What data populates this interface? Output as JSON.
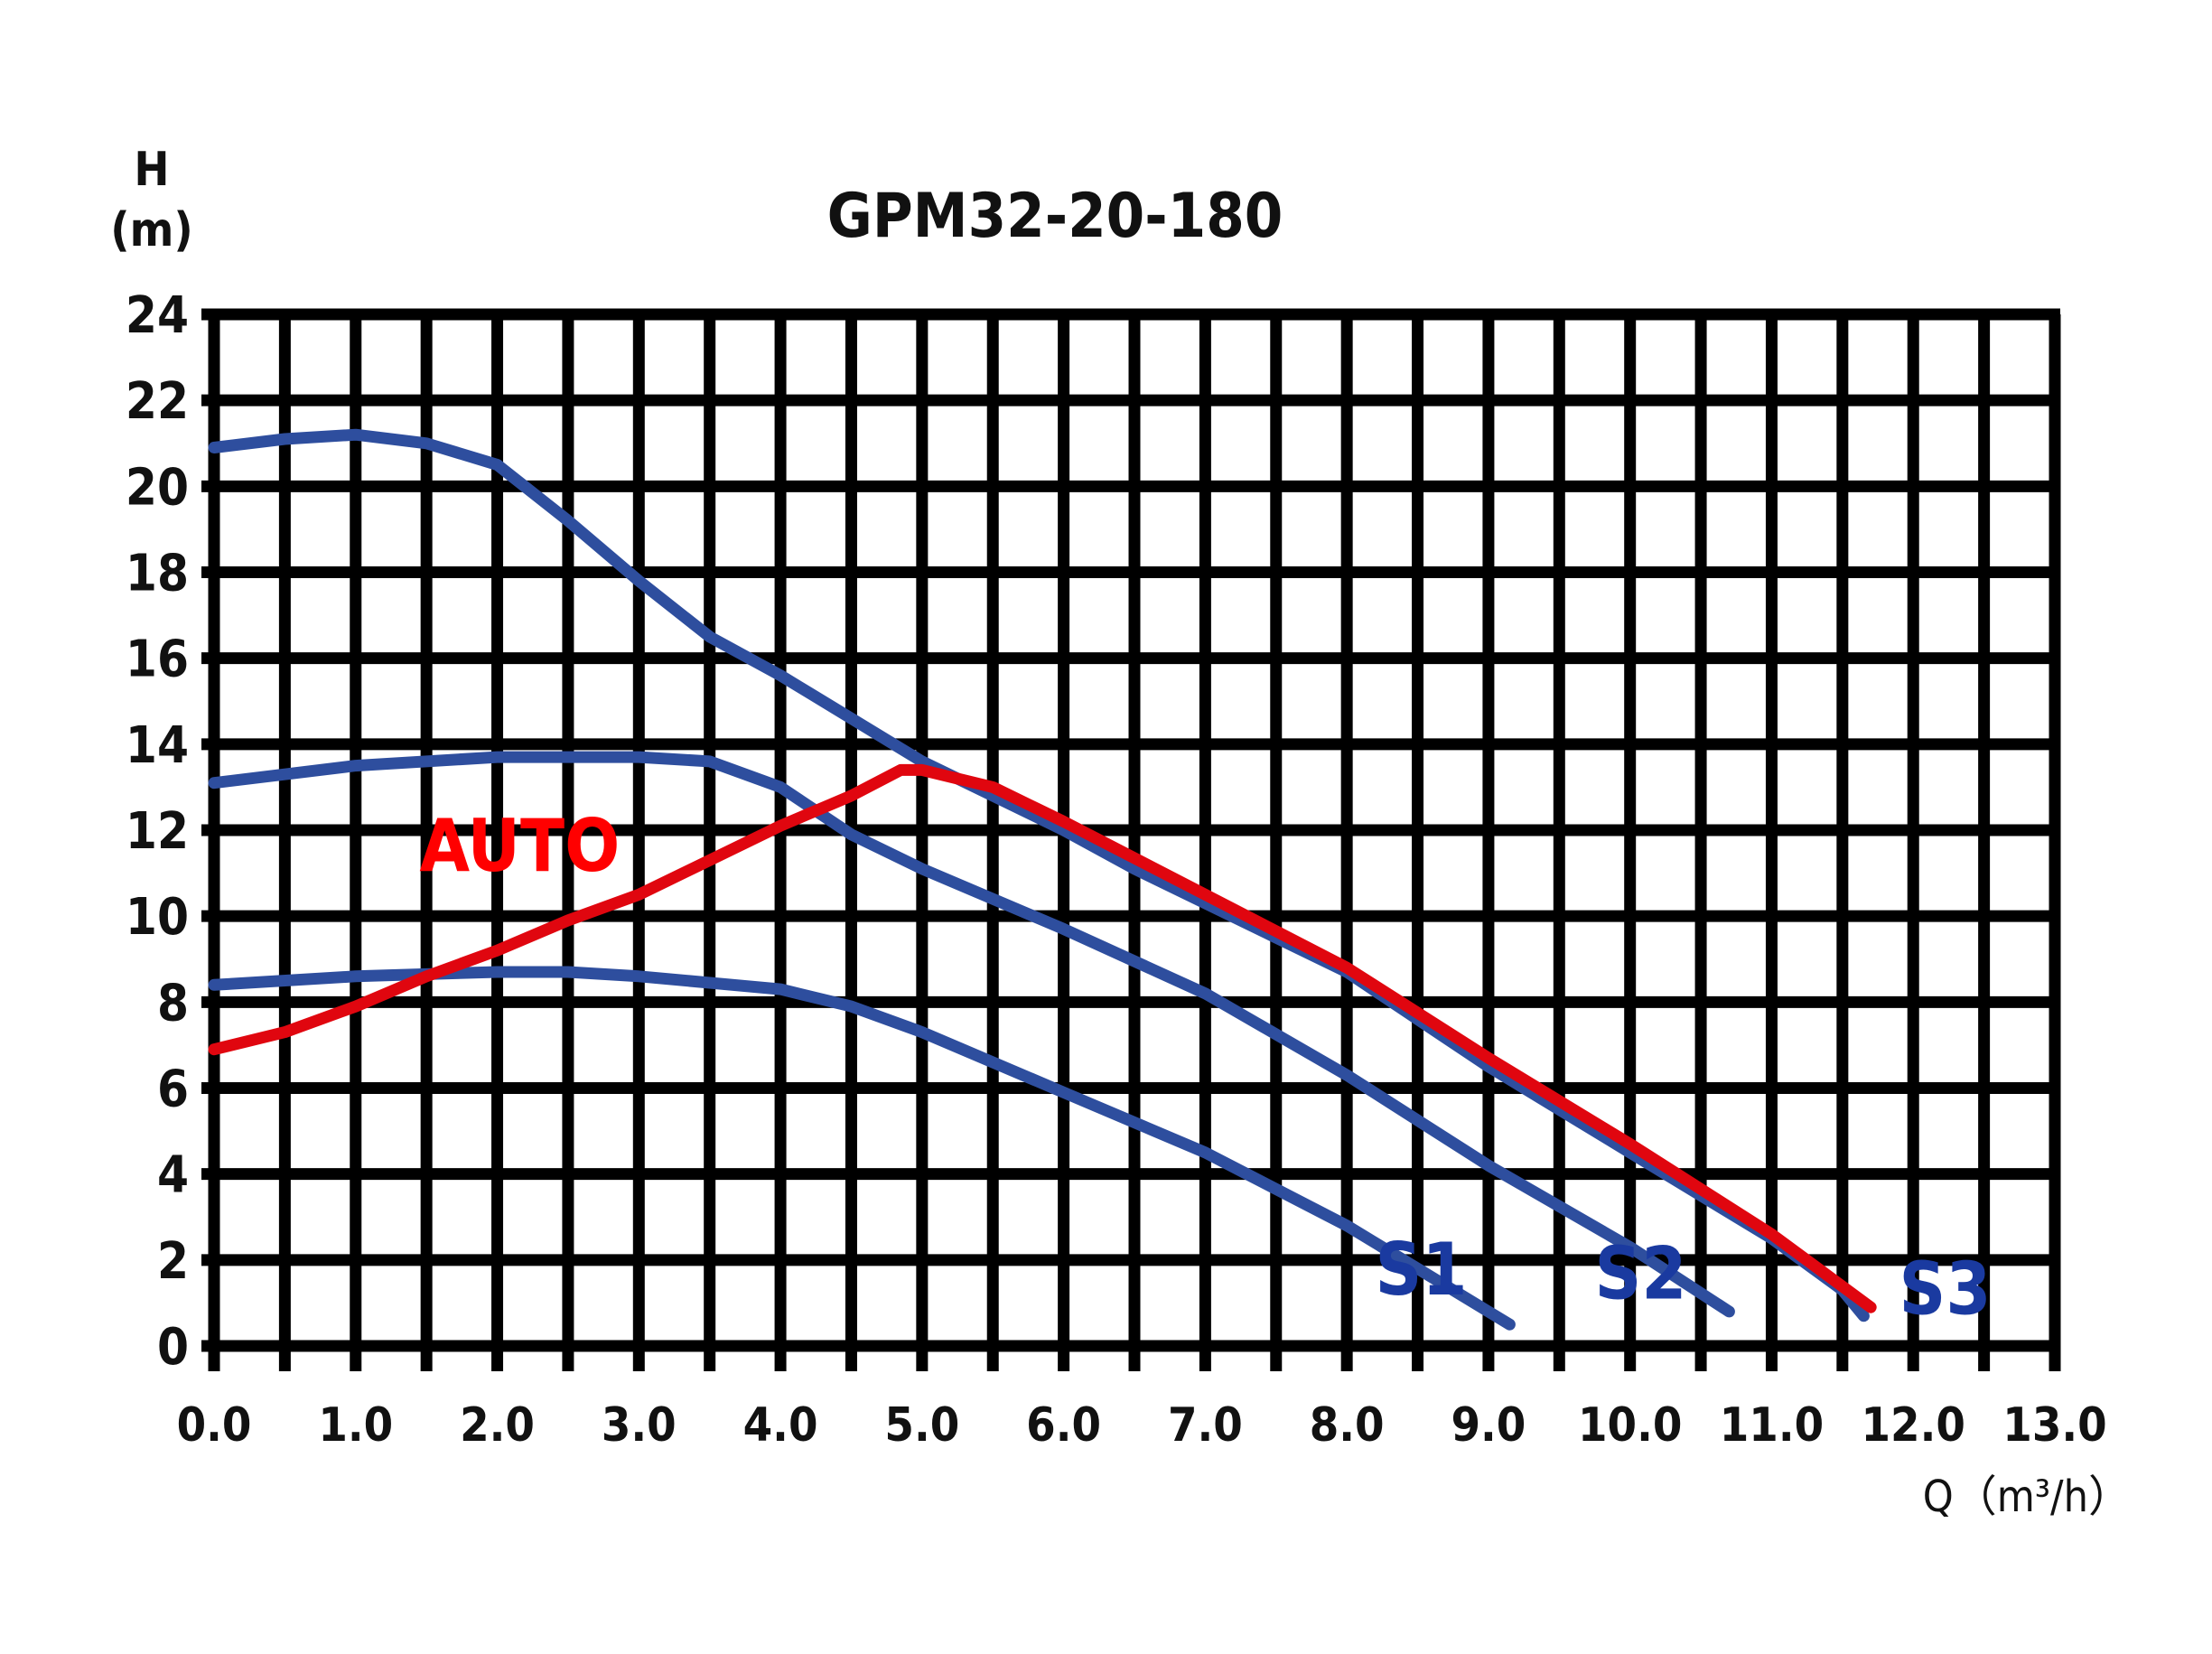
{
  "chart_data": {
    "type": "line",
    "title": "GPM32-20-180",
    "xlabel": "Q（m³/h）",
    "ylabel_line1": "H",
    "ylabel_line2": "(m)",
    "xlim": [
      0,
      13
    ],
    "ylim": [
      0,
      24
    ],
    "grid": true,
    "x_ticks": [
      "0.0",
      "1.0",
      "2.0",
      "3.0",
      "4.0",
      "5.0",
      "6.0",
      "7.0",
      "8.0",
      "9.0",
      "10.0",
      "11.0",
      "12.0",
      "13.0"
    ],
    "y_ticks": [
      "0",
      "2",
      "4",
      "6",
      "8",
      "10",
      "12",
      "14",
      "16",
      "18",
      "20",
      "22",
      "24"
    ],
    "series": [
      {
        "name": "S1",
        "color": "#2E4E9E",
        "label_color": "#1A3AA0",
        "label_pos": [
          8.2,
          1.2
        ],
        "points": [
          [
            0,
            8.4
          ],
          [
            1.0,
            8.6
          ],
          [
            2.0,
            8.7
          ],
          [
            2.5,
            8.7
          ],
          [
            3.0,
            8.6
          ],
          [
            4.0,
            8.3
          ],
          [
            4.5,
            7.9
          ],
          [
            5.0,
            7.3
          ],
          [
            6.0,
            5.9
          ],
          [
            7.0,
            4.5
          ],
          [
            8.0,
            2.8
          ],
          [
            9.15,
            0.5
          ]
        ]
      },
      {
        "name": "S2",
        "color": "#2E4E9E",
        "label_color": "#1A3AA0",
        "label_pos": [
          9.75,
          1.1
        ],
        "points": [
          [
            0,
            13.1
          ],
          [
            1.0,
            13.5
          ],
          [
            2.0,
            13.7
          ],
          [
            3.0,
            13.7
          ],
          [
            3.5,
            13.6
          ],
          [
            4.0,
            13.0
          ],
          [
            4.5,
            11.9
          ],
          [
            5.0,
            11.1
          ],
          [
            6.0,
            9.7
          ],
          [
            7.0,
            8.2
          ],
          [
            8.0,
            6.3
          ],
          [
            9.0,
            4.2
          ],
          [
            10.0,
            2.3
          ],
          [
            10.7,
            0.8
          ]
        ]
      },
      {
        "name": "S3",
        "color": "#2E4E9E",
        "label_color": "#1A3AA0",
        "label_pos": [
          11.9,
          0.75
        ],
        "points": [
          [
            0,
            20.9
          ],
          [
            0.5,
            21.1
          ],
          [
            1.0,
            21.2
          ],
          [
            1.5,
            21.0
          ],
          [
            2.0,
            20.5
          ],
          [
            2.5,
            19.2
          ],
          [
            3.0,
            17.8
          ],
          [
            3.5,
            16.5
          ],
          [
            4.0,
            15.6
          ],
          [
            4.5,
            14.6
          ],
          [
            5.0,
            13.6
          ],
          [
            5.5,
            12.8
          ],
          [
            6.0,
            12.0
          ],
          [
            6.5,
            11.1
          ],
          [
            7.0,
            10.3
          ],
          [
            7.5,
            9.5
          ],
          [
            8.0,
            8.7
          ],
          [
            8.5,
            7.6
          ],
          [
            9.0,
            6.5
          ],
          [
            9.5,
            5.5
          ],
          [
            10.0,
            4.5
          ],
          [
            10.5,
            3.5
          ],
          [
            11.0,
            2.5
          ],
          [
            11.5,
            1.3
          ],
          [
            11.65,
            0.7
          ]
        ]
      },
      {
        "name": "AUTO",
        "color": "#E0060F",
        "label_color": "#FF0000",
        "label_pos": [
          1.45,
          11.05
        ],
        "points": [
          [
            0,
            6.9
          ],
          [
            0.5,
            7.3
          ],
          [
            1.0,
            7.9
          ],
          [
            1.5,
            8.6
          ],
          [
            2.0,
            9.2
          ],
          [
            2.5,
            9.9
          ],
          [
            3.0,
            10.5
          ],
          [
            3.5,
            11.3
          ],
          [
            4.0,
            12.1
          ],
          [
            4.5,
            12.8
          ],
          [
            4.85,
            13.4
          ],
          [
            5.0,
            13.4
          ],
          [
            5.5,
            13.0
          ],
          [
            6.0,
            12.2
          ],
          [
            7.0,
            10.5
          ],
          [
            8.0,
            8.8
          ],
          [
            9.0,
            6.7
          ],
          [
            10.0,
            4.7
          ],
          [
            11.0,
            2.6
          ],
          [
            11.7,
            0.9
          ]
        ]
      }
    ]
  },
  "colors": {
    "grid": "#000000",
    "background": "#ffffff",
    "text": "#111111"
  }
}
